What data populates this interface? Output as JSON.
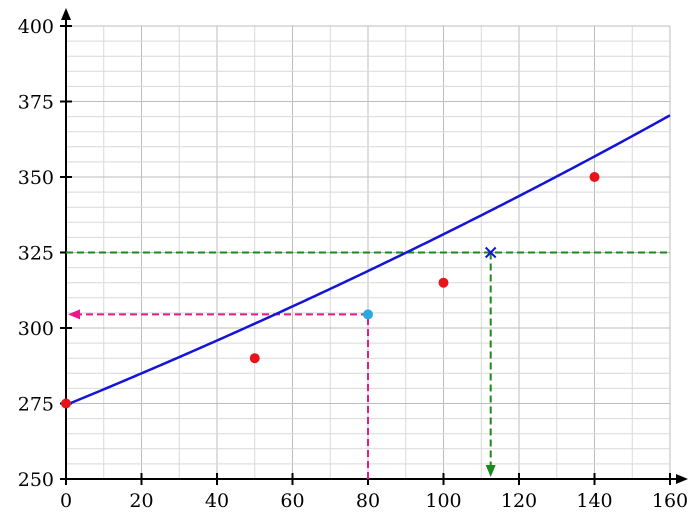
{
  "chart_data": {
    "type": "scatter",
    "title": "",
    "xlabel": "",
    "ylabel": "",
    "xlim": [
      0,
      160
    ],
    "ylim": [
      250,
      400
    ],
    "x_ticks": [
      0,
      20,
      40,
      60,
      80,
      100,
      120,
      140,
      160
    ],
    "y_ticks": [
      250,
      275,
      300,
      325,
      350,
      375,
      400
    ],
    "x_tick_labels": [
      "0",
      "20",
      "40",
      "60",
      "80",
      "100",
      "120",
      "140",
      "160"
    ],
    "y_tick_labels": [
      "250",
      "275",
      "300",
      "325",
      "350",
      "375",
      "400"
    ],
    "grid": true,
    "grid_minor_x_step": 10,
    "grid_minor_y_step": 5,
    "points": [
      {
        "x": 0,
        "y": 275
      },
      {
        "x": 50,
        "y": 290
      },
      {
        "x": 100,
        "y": 315
      },
      {
        "x": 140,
        "y": 350
      }
    ],
    "fit_curve": {
      "type": "exponential",
      "a": 274.5,
      "b": 0.001873,
      "x_range": [
        0,
        160
      ]
    },
    "highlight_point": {
      "x": 80,
      "y": 304.5
    },
    "marked_point": {
      "x": 112.5,
      "y": 325
    },
    "colors": {
      "points": "#e8141c",
      "curve": "#1414d8",
      "highlight": "#29a9e1",
      "pink_lines": "#e8198b",
      "green_lines": "#1a8a1a",
      "grid_major": "#bdbdbd",
      "grid_minor": "#d9d9d9"
    }
  }
}
